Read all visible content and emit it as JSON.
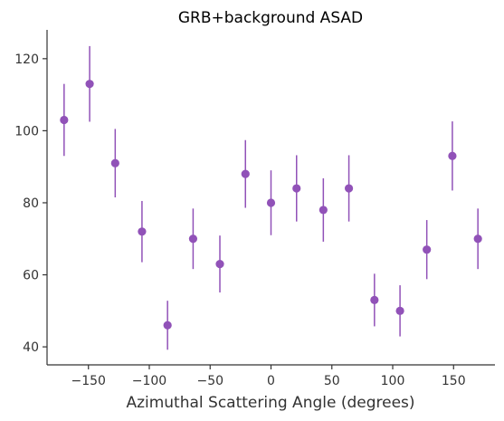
{
  "chart_data": {
    "type": "scatter",
    "title": "GRB+background ASAD",
    "xlabel": "Azimuthal Scattering Angle (degrees)",
    "ylabel": "",
    "xlim": [
      -184,
      184
    ],
    "ylim": [
      35,
      128
    ],
    "xticks": [
      -150,
      -100,
      -50,
      0,
      50,
      100,
      150
    ],
    "yticks": [
      40,
      60,
      80,
      100,
      120
    ],
    "xtick_labels": [
      "−150",
      "−100",
      "−50",
      "0",
      "50",
      "100",
      "150"
    ],
    "ytick_labels": [
      "40",
      "60",
      "80",
      "100",
      "120"
    ],
    "grid": false,
    "color": "#9152b8",
    "series": [
      {
        "x": [
          -170,
          -149,
          -128,
          -106,
          -85,
          -64,
          -42,
          -21,
          0,
          21,
          43,
          64,
          85,
          106,
          128,
          149,
          170
        ],
        "y": [
          103,
          113,
          91,
          72,
          46,
          70,
          63,
          88,
          80,
          84,
          78,
          84,
          53,
          50,
          67,
          93,
          70
        ],
        "yerr": [
          10,
          10.5,
          9.5,
          8.5,
          6.8,
          8.4,
          7.9,
          9.4,
          9,
          9.2,
          8.8,
          9.2,
          7.3,
          7.1,
          8.2,
          9.6,
          8.4
        ]
      }
    ]
  }
}
